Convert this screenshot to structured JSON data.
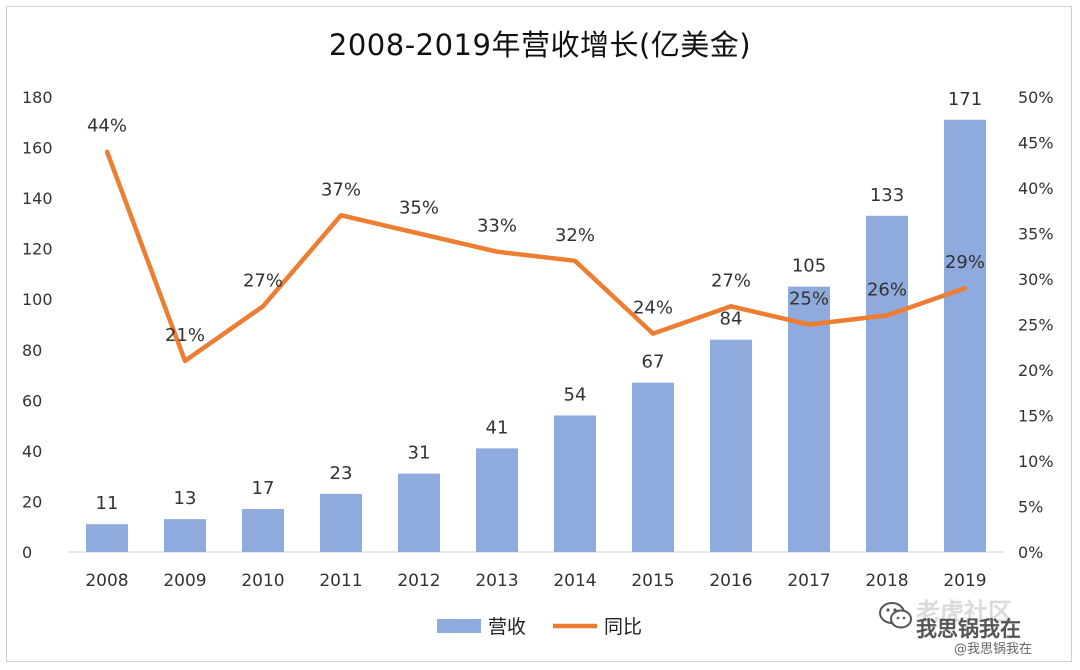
{
  "chart_data": {
    "type": "bar",
    "title": "2008-2019年营收增长(亿美金)",
    "categories": [
      "2008",
      "2009",
      "2010",
      "2011",
      "2012",
      "2013",
      "2014",
      "2015",
      "2016",
      "2017",
      "2018",
      "2019"
    ],
    "series": [
      {
        "name": "营收",
        "type": "bar",
        "axis": "left",
        "color": "#8faadc",
        "values": [
          11,
          13,
          17,
          23,
          31,
          41,
          54,
          67,
          84,
          105,
          133,
          171
        ]
      },
      {
        "name": "同比",
        "type": "line",
        "axis": "right",
        "color": "#ed7d31",
        "values": [
          44,
          21,
          27,
          37,
          35,
          33,
          32,
          24,
          27,
          25,
          26,
          29
        ],
        "labels": [
          "44%",
          "21%",
          "27%",
          "37%",
          "35%",
          "33%",
          "32%",
          "24%",
          "27%",
          "25%",
          "26%",
          "29%"
        ]
      }
    ],
    "y_left": {
      "min": 0,
      "max": 180,
      "ticks": [
        "0",
        "20",
        "40",
        "60",
        "80",
        "100",
        "120",
        "140",
        "160",
        "180"
      ]
    },
    "y_right": {
      "min": 0,
      "max": 50,
      "ticks": [
        "0%",
        "5%",
        "10%",
        "15%",
        "20%",
        "25%",
        "30%",
        "35%",
        "40%",
        "45%",
        "50%"
      ]
    },
    "grid": false,
    "legend_position": "bottom"
  },
  "watermark": {
    "line1": "老虎社区",
    "line2": "我思锅我在",
    "line3": "@我思锅我在"
  },
  "icons": {
    "watermark": "wechat-icon"
  }
}
